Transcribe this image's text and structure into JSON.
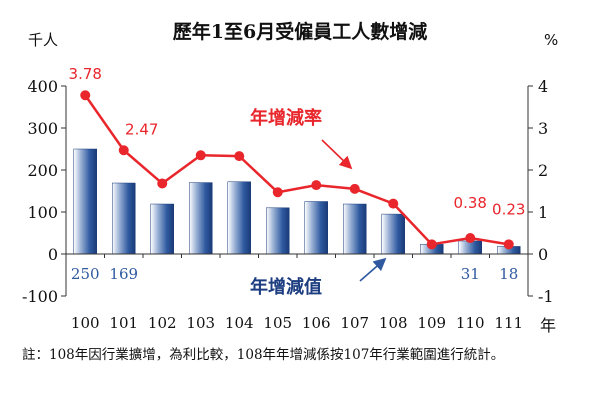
{
  "chart_data": {
    "type": "bar+line",
    "title": "歷年1至6月受僱員工人數增減",
    "left_unit": "千人",
    "right_unit": "%",
    "x_unit": "年",
    "categories": [
      "100",
      "101",
      "102",
      "103",
      "104",
      "105",
      "106",
      "107",
      "108",
      "109",
      "110",
      "111"
    ],
    "ylim_left": [
      -100,
      400
    ],
    "yticks_left": [
      "-100",
      "0",
      "100",
      "200",
      "300",
      "400"
    ],
    "ylim_right": [
      -1,
      4
    ],
    "yticks_right": [
      "-1",
      "0",
      "1",
      "2",
      "3",
      "4"
    ],
    "series": [
      {
        "name": "年增減值",
        "type": "bar",
        "axis": "left",
        "values": [
          250,
          169,
          119,
          170,
          172,
          110,
          125,
          119,
          95,
          23,
          31,
          18
        ],
        "shown_labels": [
          "250",
          "169",
          "",
          "",
          "",
          "",
          "",
          "",
          "",
          "",
          "31",
          "18"
        ],
        "color": "#2f5aa0"
      },
      {
        "name": "年增減率",
        "type": "line",
        "axis": "right",
        "values": [
          3.78,
          2.47,
          1.68,
          2.35,
          2.33,
          1.47,
          1.64,
          1.55,
          1.2,
          0.23,
          0.38,
          0.23
        ],
        "shown_labels": [
          "3.78",
          "2.47",
          "",
          "",
          "",
          "",
          "",
          "",
          "",
          "",
          "0.38",
          "0.23"
        ],
        "color": "#e8262c"
      }
    ]
  },
  "note": "註：108年因行業擴增，為利比較，108年年增減係按107年行業範圍進行統計。"
}
